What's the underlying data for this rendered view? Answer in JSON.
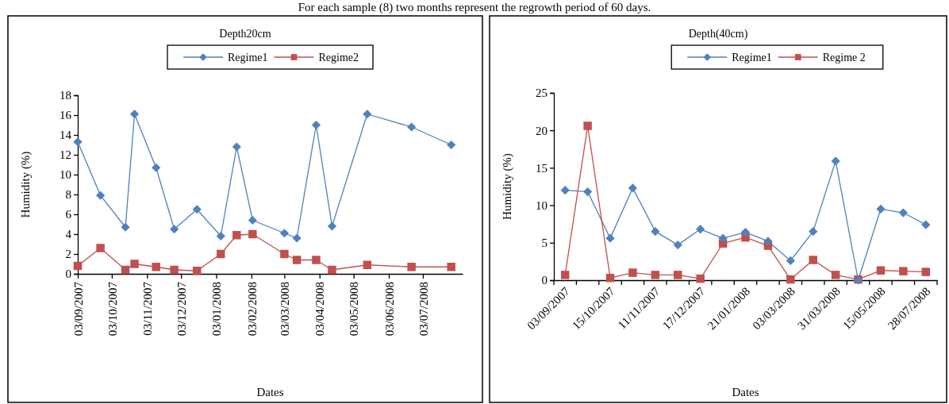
{
  "chart_data": [
    {
      "type": "line",
      "title": "Depth20cm",
      "xlabel": "Dates",
      "ylabel": "Humidity (%)",
      "annotations": [
        "For each sample (8) two months represent the regrowth period of 60 days."
      ],
      "x": [
        "2007-09-03",
        "2007-09-23",
        "2007-10-15",
        "2007-10-23",
        "2007-11-11",
        "2007-11-27",
        "2007-12-17",
        "2008-01-07",
        "2008-01-21",
        "2008-02-04",
        "2008-03-03",
        "2008-03-14",
        "2008-03-31",
        "2008-04-14",
        "2008-05-15",
        "2008-06-23",
        "2008-07-28"
      ],
      "series": [
        {
          "name": "Regime1",
          "color": "#4f81bd",
          "marker": "diamond",
          "values": [
            13.3,
            7.9,
            4.7,
            16.1,
            10.7,
            4.5,
            6.5,
            3.8,
            12.8,
            5.4,
            4.1,
            3.6,
            15.0,
            4.8,
            16.1,
            14.8,
            13.0
          ]
        },
        {
          "name": "Regime2",
          "color": "#c0504d",
          "marker": "square",
          "values": [
            0.8,
            2.6,
            0.4,
            1.0,
            0.7,
            0.4,
            0.3,
            2.0,
            3.9,
            4.0,
            2.0,
            1.4,
            1.4,
            0.4,
            0.9,
            0.7,
            0.7
          ]
        }
      ],
      "xlim": [
        "2007-09-03",
        "2008-08-07"
      ],
      "xticks": [
        {
          "value": "2007-09-03",
          "label": "03/09/2007"
        },
        {
          "value": "2007-10-03",
          "label": "03/10/2007"
        },
        {
          "value": "2007-11-03",
          "label": "03/11/2007"
        },
        {
          "value": "2007-12-03",
          "label": "03/12/2007"
        },
        {
          "value": "2008-01-03",
          "label": "03/01/2008"
        },
        {
          "value": "2008-02-03",
          "label": "03/02/2008"
        },
        {
          "value": "2008-03-03",
          "label": "03/03/2008"
        },
        {
          "value": "2008-04-03",
          "label": "03/04/2008"
        },
        {
          "value": "2008-05-03",
          "label": "03/05/2008"
        },
        {
          "value": "2008-06-03",
          "label": "03/06/2008"
        },
        {
          "value": "2008-07-03",
          "label": "03/07/2008"
        }
      ],
      "ylim": [
        0,
        18
      ],
      "yticks": [
        0,
        2,
        4,
        6,
        8,
        10,
        12,
        14,
        16,
        18
      ],
      "legend": "top"
    },
    {
      "type": "line",
      "title": "Depth(40cm)",
      "xlabel": "Dates",
      "ylabel": "Humidity (%)",
      "categories": [
        "03/09/2007",
        null,
        "15/10/2007",
        null,
        "11/11/2007",
        null,
        "17/12/2007",
        null,
        "21/01/2008",
        null,
        "03/03/2008",
        null,
        "31/03/2008",
        null,
        "15/05/2008",
        null,
        "28/07/2008"
      ],
      "series": [
        {
          "name": "Regime1",
          "color": "#4f81bd",
          "marker": "diamond",
          "values": [
            12.0,
            11.8,
            5.6,
            12.3,
            6.5,
            4.7,
            6.8,
            5.6,
            6.4,
            5.2,
            2.6,
            6.5,
            15.9,
            0.0,
            9.5,
            9.0,
            7.4
          ]
        },
        {
          "name": "Regime 2",
          "color": "#c0504d",
          "marker": "square",
          "values": [
            0.7,
            20.6,
            0.3,
            1.0,
            0.7,
            0.7,
            0.2,
            4.9,
            5.7,
            4.6,
            0.1,
            2.7,
            0.7,
            0.1,
            1.3,
            1.2,
            1.1
          ]
        }
      ],
      "ylim": [
        0,
        25
      ],
      "yticks": [
        0,
        5,
        10,
        15,
        20,
        25
      ],
      "legend": "top"
    }
  ]
}
